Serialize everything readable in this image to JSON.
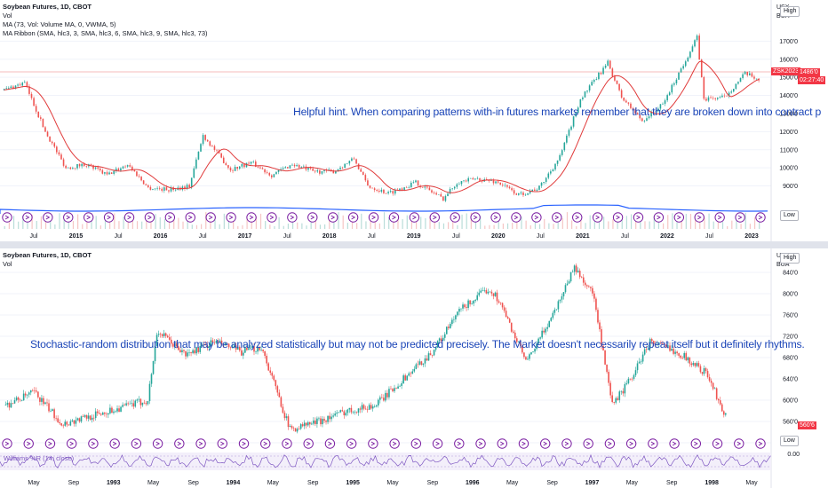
{
  "top_chart": {
    "legend": {
      "title": "Soybean Futures, 1D, CBOT",
      "line2": "Vol",
      "line3": "MA (73, Vol: Volume MA, 0, VWMA, 5)",
      "line4": "MA Ribbon (SMA, hlc3, 3, SMA, hlc3, 6, SMA, hlc3, 9, SMA, hlc3, 73)"
    },
    "hint": "Helpful hint.    When comparing patterns with-in futures markets remember that they are broken down into contract p",
    "high_label": "High",
    "low_label": "Low",
    "currency_top": "USX",
    "currency_bottom": "BUA",
    "symbol_tag": "ZSK2023",
    "price_tag": "1486'0",
    "countdown_tag": "02:27:40",
    "low_value": "791'0",
    "colors": {
      "up": "#26a69a",
      "down": "#ef5350",
      "ma": "#e03a3a",
      "volume_ma": "#2962ff",
      "hint": "#1c46b8",
      "badge": "#7b1fa2"
    }
  },
  "bottom_chart": {
    "legend": {
      "title": "Soybean Futures, 1D, CBOT",
      "line2": "Vol"
    },
    "hint": "Stochastic-random distribution that may be analyzed statistically but may not be predicted precisely.    The Market doesn't necessarily repeat itself but it definitely rhythms.",
    "high_label": "High",
    "low_label": "Low",
    "currency_top": "USX",
    "currency_bottom": "BUA",
    "price_tag": "560'6",
    "low_value": "524'4",
    "osc_label": "Williams %R (14, close)",
    "osc_value": "0.00"
  },
  "chart_data": [
    {
      "type": "line",
      "title": "Soybean Futures, 1D, CBOT",
      "x_ticks": [
        "Jul",
        "2015",
        "Jul",
        "2016",
        "Jul",
        "2017",
        "Jul",
        "2018",
        "Jul",
        "2019",
        "Jul",
        "2020",
        "Jul",
        "2021",
        "Jul",
        "2022",
        "Jul",
        "2023"
      ],
      "y_ticks": [
        "1700'0",
        "1600'0",
        "1500'0",
        "1400'0",
        "1300'0",
        "1200'0",
        "1100'0",
        "1000'0",
        "900'0"
      ],
      "ylim": [
        790,
        1790
      ],
      "series": [
        {
          "name": "",
          "x": [
            "2014-01",
            "2014-04",
            "2014-07",
            "2014-10",
            "2015-01",
            "2015-04",
            "2015-07",
            "2015-10",
            "2016-01",
            "2016-04",
            "2016-06",
            "2016-10",
            "2017-01",
            "2017-04",
            "2017-07",
            "2017-10",
            "2018-01",
            "2018-04",
            "2018-06",
            "2018-09",
            "2019-01",
            "2019-05",
            "2019-07",
            "2019-10",
            "2020-01",
            "2020-04",
            "2020-07",
            "2020-10",
            "2021-01",
            "2021-05",
            "2021-07",
            "2021-10",
            "2022-01",
            "2022-06",
            "2022-07",
            "2022-10",
            "2023-01",
            "2023-03"
          ],
          "values": [
            1430,
            1470,
            1200,
            1000,
            1020,
            960,
            1020,
            890,
            880,
            900,
            1180,
            990,
            1030,
            960,
            1020,
            980,
            980,
            1050,
            900,
            860,
            920,
            830,
            920,
            940,
            920,
            850,
            890,
            1060,
            1380,
            1580,
            1390,
            1260,
            1350,
            1720,
            1380,
            1390,
            1520,
            1490
          ]
        }
      ]
    },
    {
      "type": "line",
      "title": "Soybean Futures, 1D, CBOT",
      "x_ticks": [
        "May",
        "Sep",
        "1993",
        "May",
        "Sep",
        "1994",
        "May",
        "Sep",
        "1995",
        "May",
        "Sep",
        "1996",
        "May",
        "Sep",
        "1997",
        "May",
        "Sep",
        "1998",
        "May"
      ],
      "y_ticks": [
        "840'0",
        "800'0",
        "760'0",
        "720'0",
        "680'0",
        "640'0",
        "600'0",
        "560'0",
        "520'0"
      ],
      "ylim": [
        510,
        860
      ],
      "series": [
        {
          "name": "",
          "x": [
            "1992-03",
            "1992-06",
            "1992-09",
            "1992-12",
            "1993-03",
            "1993-06",
            "1993-07",
            "1993-10",
            "1994-01",
            "1994-04",
            "1994-06",
            "1994-09",
            "1994-12",
            "1995-03",
            "1995-06",
            "1995-09",
            "1995-12",
            "1996-03",
            "1996-06",
            "1996-07",
            "1996-10",
            "1997-01",
            "1997-03",
            "1997-05",
            "1997-07",
            "1997-09",
            "1997-11",
            "1998-02",
            "1998-05",
            "1998-07"
          ],
          "values": [
            590,
            615,
            555,
            570,
            585,
            600,
            730,
            685,
            710,
            690,
            700,
            545,
            560,
            580,
            590,
            640,
            690,
            770,
            810,
            790,
            670,
            770,
            850,
            800,
            590,
            640,
            710,
            690,
            650,
            570
          ]
        }
      ]
    }
  ]
}
